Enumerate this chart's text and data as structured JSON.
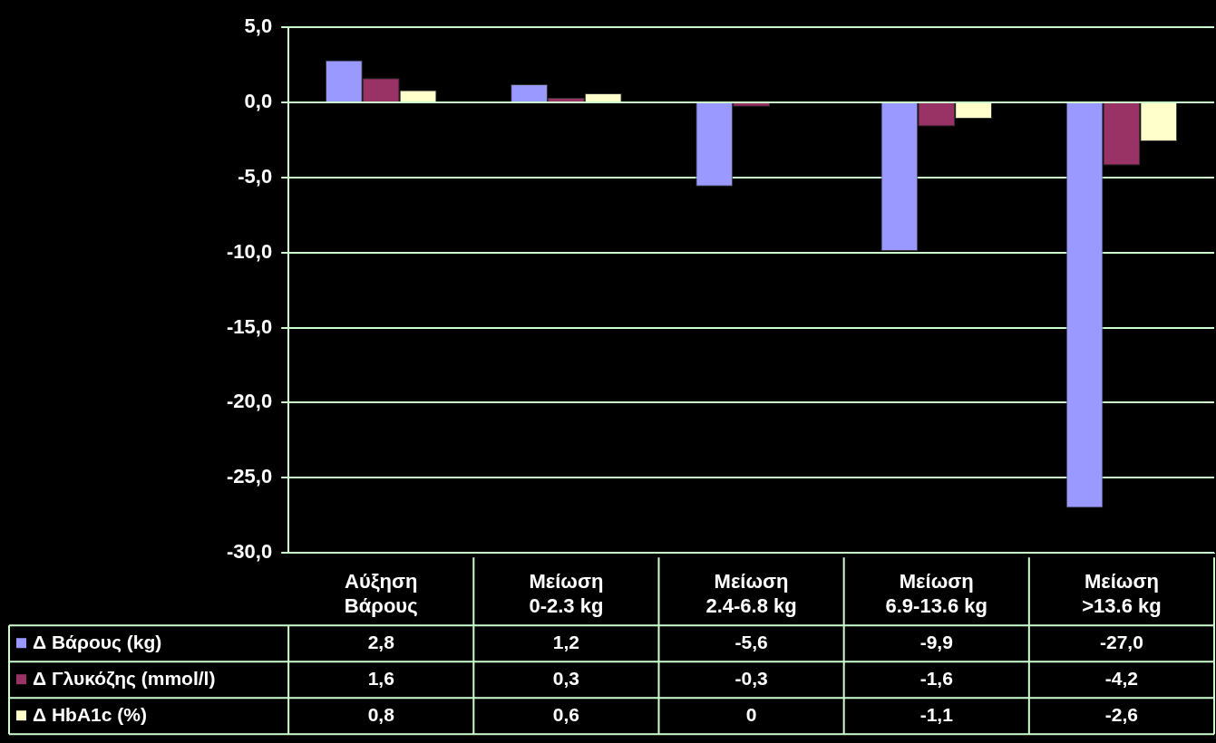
{
  "chart_data": {
    "type": "bar",
    "categories": [
      "Αύξηση Βάρους",
      "Μείωση 0-2.3 kg",
      "Μείωση 2.4-6.8 kg",
      "Μείωση 6.9-13.6 kg",
      "Μείωση >13.6 kg"
    ],
    "series": [
      {
        "name": "Δ Βάρους (kg)",
        "color": "#9999ff",
        "values": [
          2.8,
          1.2,
          -5.6,
          -9.9,
          -27.0
        ],
        "value_labels": [
          "2,8",
          "1,2",
          "-5,6",
          "-9,9",
          "-27,0"
        ]
      },
      {
        "name": "Δ Γλυκόζης (mmol/l)",
        "color": "#993366",
        "values": [
          1.6,
          0.3,
          -0.3,
          -1.6,
          -4.2
        ],
        "value_labels": [
          "1,6",
          "0,3",
          "-0,3",
          "-1,6",
          "-4,2"
        ]
      },
      {
        "name": "Δ HbA1c (%)",
        "color": "#ffffcc",
        "values": [
          0.8,
          0.6,
          0,
          -1.1,
          -2.6
        ],
        "value_labels": [
          "0,8",
          "0,6",
          "0",
          "-1,1",
          "-2,6"
        ]
      }
    ],
    "ylim": [
      -30,
      5
    ],
    "yticks": [
      {
        "value": 5,
        "label": "5,0"
      },
      {
        "value": 0,
        "label": "0,0"
      },
      {
        "value": -5,
        "label": "-5,0"
      },
      {
        "value": -10,
        "label": "-10,0"
      },
      {
        "value": -15,
        "label": "-15,0"
      },
      {
        "value": -20,
        "label": "-20,0"
      },
      {
        "value": -25,
        "label": "-25,0"
      },
      {
        "value": -30,
        "label": "-30,0"
      }
    ],
    "grid": "y",
    "legend": "bottom"
  }
}
